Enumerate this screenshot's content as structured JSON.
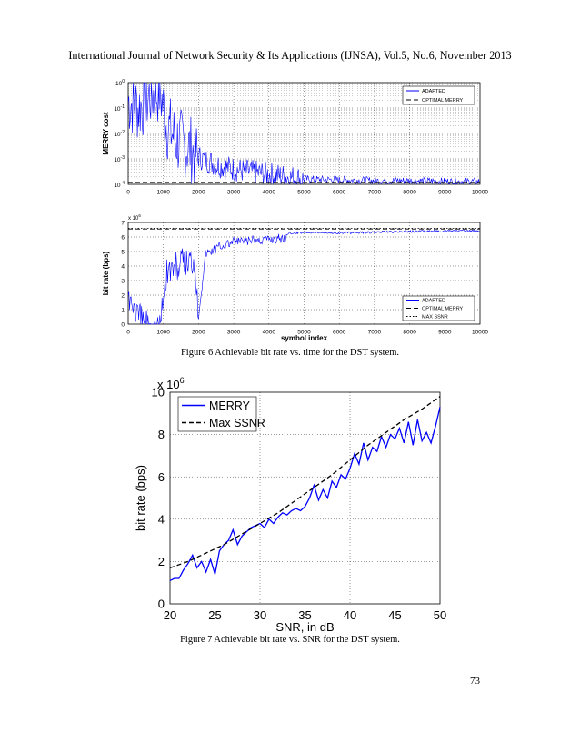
{
  "header": {
    "text": "International Journal of Network Security & Its Applications (IJNSA), Vol.5, No.6, November 2013"
  },
  "figures": {
    "fig6_caption": "Figure 6 Achievable bit rate vs. time for the DST system.",
    "fig7_caption": "Figure 7 Achievable bit rate vs. SNR for the DST system."
  },
  "page_number": "73",
  "chart_data": [
    {
      "type": "line",
      "ylabel": "MERRY cost",
      "xlabel": "",
      "xlim": [
        0,
        10000
      ],
      "ylim": [
        0.0001,
        1
      ],
      "yscale": "log",
      "grid": true,
      "legend_position": "top-right",
      "x_ticks": [
        "0",
        "1000",
        "2000",
        "3000",
        "4000",
        "5000",
        "6000",
        "7000",
        "8000",
        "9000",
        "10000"
      ],
      "y_ticks": [
        {
          "base": "10",
          "exp": "0",
          "value": 1
        },
        {
          "base": "10",
          "exp": "-1",
          "value": 0.1
        },
        {
          "base": "10",
          "exp": "-2",
          "value": 0.01
        },
        {
          "base": "10",
          "exp": "-3",
          "value": 0.001
        },
        {
          "base": "10",
          "exp": "-4",
          "value": 0.0001
        }
      ],
      "series": [
        {
          "name": "ADAPTED",
          "color": "#0000ff",
          "style": "solid",
          "x": [
            0,
            300,
            600,
            900,
            1100,
            1400,
            1700,
            2000,
            2500,
            3000,
            3500,
            4000,
            5000,
            6000,
            7000,
            8000,
            9000,
            10000
          ],
          "y": [
            0.2,
            0.1,
            0.3,
            0.5,
            0.02,
            0.005,
            0.003,
            0.0012,
            0.0006,
            0.0004,
            0.0003,
            0.00025,
            0.00016,
            0.00015,
            0.00014,
            0.00014,
            0.00013,
            0.00013
          ]
        },
        {
          "name": "OPTIMAL MERRY",
          "color": "#000000",
          "style": "dashed",
          "x": [
            0,
            10000
          ],
          "y": [
            0.00012,
            0.00012
          ]
        }
      ]
    },
    {
      "type": "line",
      "ylabel": "bit rate (bps)",
      "xlabel": "symbol index",
      "xlim": [
        0,
        10000
      ],
      "ylim": [
        0,
        7000000
      ],
      "grid": true,
      "legend_position": "bottom-right",
      "scale_label": {
        "base": "x 10",
        "exp": "6"
      },
      "x_ticks": [
        "0",
        "1000",
        "2000",
        "3000",
        "4000",
        "5000",
        "6000",
        "7000",
        "8000",
        "9000",
        "10000"
      ],
      "y_ticks": [
        "0",
        "1",
        "2",
        "3",
        "4",
        "5",
        "6",
        "7"
      ],
      "series": [
        {
          "name": "ADAPTED",
          "color": "#0000ff",
          "style": "solid",
          "x": [
            0,
            300,
            600,
            900,
            1100,
            1500,
            1900,
            2000,
            2200,
            2600,
            3000,
            3500,
            4000,
            4500,
            5000,
            6000,
            7000,
            8000,
            9000,
            10000
          ],
          "y": [
            3200000,
            1500000,
            1100000,
            900000,
            4800000,
            5200000,
            5600000,
            1000000,
            5200000,
            5700000,
            6000000,
            6100000,
            6200000,
            6300000,
            6400000,
            6350000,
            6400000,
            6450000,
            6500000,
            6500000
          ]
        },
        {
          "name": "OPTIMAL MERRY",
          "color": "#000000",
          "style": "dashed",
          "x": [
            0,
            10000
          ],
          "y": [
            6550000,
            6550000
          ]
        },
        {
          "name": "MAX SSNR",
          "color": "#000000",
          "style": "dotted",
          "x": [
            0,
            10000
          ],
          "y": [
            6600000,
            6600000
          ]
        }
      ]
    },
    {
      "type": "line",
      "xlabel": "SNR, in dB",
      "ylabel": "bit rate (bps)",
      "xlim": [
        20,
        50
      ],
      "ylim": [
        0,
        10000000
      ],
      "grid": true,
      "legend_position": "top-left",
      "scale_label": {
        "base": "x 10",
        "exp": "6"
      },
      "x_ticks": [
        "20",
        "25",
        "30",
        "35",
        "40",
        "45",
        "50"
      ],
      "y_ticks": [
        "0",
        "2",
        "4",
        "6",
        "8",
        "10"
      ],
      "series": [
        {
          "name": "MERRY",
          "color": "#0000ff",
          "style": "solid",
          "x": [
            20,
            20.5,
            21,
            21.5,
            22,
            22.5,
            23,
            23.5,
            24,
            24.5,
            25,
            25.5,
            26,
            26.5,
            27,
            27.5,
            28,
            28.5,
            29,
            29.5,
            30,
            30.5,
            31,
            31.5,
            32,
            32.5,
            33,
            33.5,
            34,
            34.5,
            35,
            35.5,
            36,
            36.5,
            37,
            37.5,
            38,
            38.5,
            39,
            39.5,
            40,
            40.5,
            41,
            41.5,
            42,
            42.5,
            43,
            43.5,
            44,
            44.5,
            45,
            45.5,
            46,
            46.5,
            47,
            47.5,
            48,
            48.5,
            49,
            49.5,
            50
          ],
          "y": [
            1.1,
            1.2,
            1.2,
            1.6,
            1.9,
            2.3,
            1.7,
            2.0,
            1.5,
            2.1,
            1.4,
            2.5,
            2.8,
            3.0,
            3.5,
            2.8,
            3.2,
            3.4,
            3.6,
            3.7,
            3.8,
            3.6,
            4.0,
            3.8,
            4.1,
            4.3,
            4.2,
            4.4,
            4.5,
            4.4,
            4.6,
            5.0,
            5.6,
            4.9,
            5.4,
            5.0,
            5.8,
            5.5,
            6.1,
            5.9,
            6.4,
            7.1,
            6.6,
            7.6,
            6.8,
            7.4,
            7.2,
            7.9,
            7.4,
            8.0,
            7.8,
            8.3,
            7.6,
            8.6,
            7.5,
            8.7,
            7.7,
            8.1,
            7.6,
            8.4,
            9.3
          ]
        },
        {
          "name": "Max SSNR",
          "color": "#000000",
          "style": "dashed",
          "x": [
            20,
            22,
            24,
            26,
            28,
            30,
            32,
            34,
            36,
            38,
            40,
            42,
            44,
            46,
            48,
            50
          ],
          "y": [
            1.7,
            2.0,
            2.4,
            2.8,
            3.3,
            3.8,
            4.3,
            4.9,
            5.5,
            6.1,
            6.8,
            7.5,
            8.1,
            8.7,
            9.2,
            9.8
          ]
        }
      ]
    }
  ]
}
